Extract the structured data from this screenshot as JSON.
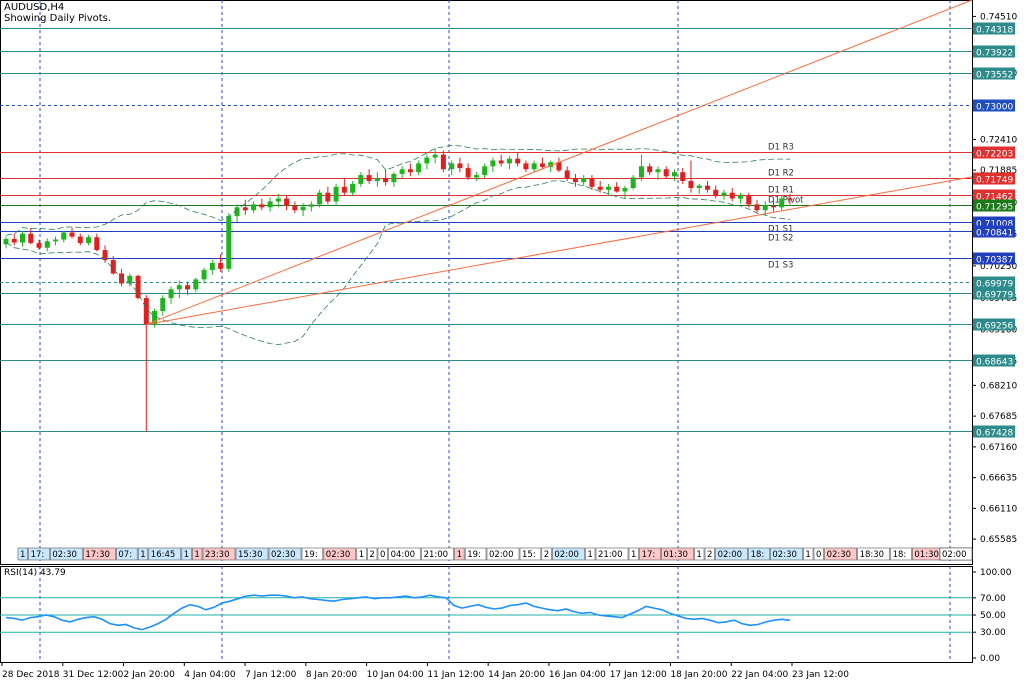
{
  "chart_data": [
    {
      "type": "candlestick",
      "symbol_title": "AUDUSD,H4",
      "subtitle": "Showing Daily Pivots.",
      "ylim": [
        0.6516,
        0.7479
      ],
      "price_ticks": [
        "0.74510",
        "0.73540",
        "0.72410",
        "0.71885",
        "0.71330",
        "0.70795",
        "0.70250",
        "0.69705",
        "0.69160",
        "0.68625",
        "0.68210",
        "0.67685",
        "0.67160",
        "0.66635",
        "0.66110",
        "0.65585"
      ],
      "horizontal_levels": [
        {
          "value": 0.74318,
          "label": "0.74318",
          "color": "#2e8b8b",
          "style": "solid"
        },
        {
          "value": 0.73922,
          "label": "0.73922",
          "color": "#2e8b8b",
          "style": "solid"
        },
        {
          "value": 0.73552,
          "label": "0.73552",
          "color": "#2e8b8b",
          "style": "solid"
        },
        {
          "value": 0.73,
          "label": "0.73000",
          "color": "#1f4fbf",
          "style": "dotted"
        },
        {
          "value": 0.72203,
          "label": "0.72203",
          "color": "#e03030",
          "style": "solid",
          "pivot": "D1 R3"
        },
        {
          "value": 0.71749,
          "label": "0.71749",
          "color": "#e03030",
          "style": "solid",
          "pivot": "D1 R2"
        },
        {
          "value": 0.71462,
          "label": "0.71462",
          "color": "#e03030",
          "style": "solid",
          "pivot": "D1 R1"
        },
        {
          "value": 0.71295,
          "label": "0.71295",
          "color": "#1a7a1a",
          "style": "solid",
          "pivot": "D1 Pivot"
        },
        {
          "value": 0.71008,
          "label": "0.71008",
          "color": "#1f3fbf",
          "style": "solid",
          "pivot": "D1 S1"
        },
        {
          "value": 0.70841,
          "label": "0.70841",
          "color": "#1f3fbf",
          "style": "solid",
          "pivot": "D1 S2"
        },
        {
          "value": 0.70387,
          "label": "0.70387",
          "color": "#1f3fbf",
          "style": "solid",
          "pivot": "D1 S3"
        },
        {
          "value": 0.69979,
          "label": "0.69979",
          "color": "#2e8b8b",
          "style": "dotted"
        },
        {
          "value": 0.69779,
          "label": "0.69779",
          "color": "#2e8b8b",
          "style": "solid"
        },
        {
          "value": 0.69256,
          "label": "0.69256",
          "color": "#2e8b8b",
          "style": "solid"
        },
        {
          "value": 0.68643,
          "label": "0.68643",
          "color": "#2e8b8b",
          "style": "solid"
        },
        {
          "value": 0.67428,
          "label": "0.67428",
          "color": "#2e8b8b",
          "style": "solid"
        }
      ],
      "x_labels": [
        "28 Dec 2018",
        "31 Dec 12:00",
        "2 Jan 20:00",
        "4 Jan 04:00",
        "7 Jan 12:00",
        "8 Jan 20:00",
        "10 Jan 04:00",
        "11 Jan 12:00",
        "14 Jan 20:00",
        "16 Jan 04:00",
        "17 Jan 12:00",
        "18 Jan 20:00",
        "22 Jan 04:00",
        "23 Jan 12:00"
      ],
      "period_separators_x": [
        40,
        222,
        449,
        678,
        950
      ],
      "session_tags": [
        {
          "t": "1",
          "c": "#c8e8ff"
        },
        {
          "t": "17:",
          "c": "#c8e8ff"
        },
        {
          "t": "02:30",
          "c": "#c8e8ff"
        },
        {
          "t": "17:30",
          "c": "#ffc8c8"
        },
        {
          "t": "07:",
          "c": "#c8e8ff"
        },
        {
          "t": "1",
          "c": "#c8e8ff"
        },
        {
          "t": "16:45",
          "c": "#c8e8ff"
        },
        {
          "t": "1",
          "c": "#c8e8ff"
        },
        {
          "t": "1",
          "c": "#ffc8c8"
        },
        {
          "t": "23:30",
          "c": "#ffc8c8"
        },
        {
          "t": "15:30",
          "c": "#c8e8ff"
        },
        {
          "t": "02:30",
          "c": "#c8e8ff"
        },
        {
          "t": "19:",
          "c": "#ffffff"
        },
        {
          "t": "02:30",
          "c": "#ffc8c8"
        },
        {
          "t": "1",
          "c": "#ffffff"
        },
        {
          "t": "2",
          "c": "#ffffff"
        },
        {
          "t": "0",
          "c": "#ffffff"
        },
        {
          "t": "04:00",
          "c": "#ffffff"
        },
        {
          "t": "21:00",
          "c": "#ffffff"
        },
        {
          "t": "1",
          "c": "#ffc8c8"
        },
        {
          "t": "19:",
          "c": "#ffffff"
        },
        {
          "t": "02:00",
          "c": "#ffffff"
        },
        {
          "t": "15:",
          "c": "#ffffff"
        },
        {
          "t": "2",
          "c": "#ffffff"
        },
        {
          "t": "02:00",
          "c": "#c8e8ff"
        },
        {
          "t": "1",
          "c": "#ffffff"
        },
        {
          "t": "21:00",
          "c": "#ffffff"
        },
        {
          "t": "1",
          "c": "#ffffff"
        },
        {
          "t": "17:",
          "c": "#ffc8c8"
        },
        {
          "t": "01:30",
          "c": "#ffc8c8"
        },
        {
          "t": "1",
          "c": "#ffffff"
        },
        {
          "t": "2",
          "c": "#ffffff"
        },
        {
          "t": "02:00",
          "c": "#c8e8ff"
        },
        {
          "t": "18:",
          "c": "#c8e8ff"
        },
        {
          "t": "02:30",
          "c": "#c8e8ff"
        },
        {
          "t": "1",
          "c": "#ffffff"
        },
        {
          "t": "0",
          "c": "#ffffff"
        },
        {
          "t": "02:30",
          "c": "#ffc8c8"
        },
        {
          "t": "18:30",
          "c": "#ffffff"
        },
        {
          "t": "18:",
          "c": "#ffffff"
        },
        {
          "t": "01:30",
          "c": "#ffc8c8"
        },
        {
          "t": "1",
          "c": "#ffffff"
        },
        {
          "t": "17:",
          "c": "#ffffff"
        },
        {
          "t": "02:00",
          "c": "#ffffff"
        },
        {
          "t": "18:30",
          "c": "#ffffff"
        },
        {
          "t": "1",
          "c": "#ffffff"
        },
        {
          "t": "2",
          "c": "#ffffff"
        },
        {
          "t": "02:00",
          "c": "#ffffff"
        }
      ],
      "ohlc": [
        [
          0.7062,
          0.7075,
          0.7055,
          0.7071
        ],
        [
          0.7071,
          0.708,
          0.706,
          0.7065
        ],
        [
          0.7065,
          0.7085,
          0.7058,
          0.708
        ],
        [
          0.708,
          0.709,
          0.7062,
          0.7064
        ],
        [
          0.7064,
          0.707,
          0.7052,
          0.7056
        ],
        [
          0.7056,
          0.7072,
          0.705,
          0.7067
        ],
        [
          0.7067,
          0.7075,
          0.706,
          0.707
        ],
        [
          0.707,
          0.7085,
          0.7065,
          0.7082
        ],
        [
          0.7082,
          0.709,
          0.7072,
          0.7075
        ],
        [
          0.7075,
          0.708,
          0.706,
          0.7064
        ],
        [
          0.7064,
          0.7078,
          0.706,
          0.7074
        ],
        [
          0.7074,
          0.708,
          0.705,
          0.7052
        ],
        [
          0.7052,
          0.706,
          0.703,
          0.7035
        ],
        [
          0.7035,
          0.7042,
          0.701,
          0.7012
        ],
        [
          0.7012,
          0.702,
          0.699,
          0.6995
        ],
        [
          0.6995,
          0.7012,
          0.699,
          0.7008
        ],
        [
          0.7008,
          0.701,
          0.6968,
          0.697
        ],
        [
          0.697,
          0.6975,
          0.6742,
          0.6925
        ],
        [
          0.6925,
          0.6952,
          0.692,
          0.6948
        ],
        [
          0.6948,
          0.6975,
          0.694,
          0.697
        ],
        [
          0.697,
          0.699,
          0.696,
          0.6985
        ],
        [
          0.6985,
          0.7,
          0.697,
          0.6992
        ],
        [
          0.6992,
          0.6998,
          0.6975,
          0.6985
        ],
        [
          0.6985,
          0.7005,
          0.698,
          0.7002
        ],
        [
          0.7002,
          0.7022,
          0.6995,
          0.7018
        ],
        [
          0.7018,
          0.7035,
          0.701,
          0.703
        ],
        [
          0.703,
          0.7045,
          0.7015,
          0.702
        ],
        [
          0.702,
          0.7115,
          0.7015,
          0.711
        ],
        [
          0.711,
          0.713,
          0.71,
          0.7125
        ],
        [
          0.7125,
          0.7138,
          0.7112,
          0.712
        ],
        [
          0.712,
          0.7135,
          0.7115,
          0.713
        ],
        [
          0.713,
          0.714,
          0.712,
          0.7125
        ],
        [
          0.7125,
          0.7142,
          0.7118,
          0.7135
        ],
        [
          0.7135,
          0.7148,
          0.7125,
          0.714
        ],
        [
          0.714,
          0.7145,
          0.712,
          0.7128
        ],
        [
          0.7128,
          0.7135,
          0.7115,
          0.712
        ],
        [
          0.712,
          0.7132,
          0.711,
          0.7126
        ],
        [
          0.7126,
          0.7135,
          0.7118,
          0.713
        ],
        [
          0.713,
          0.7155,
          0.7125,
          0.715
        ],
        [
          0.715,
          0.716,
          0.713,
          0.7135
        ],
        [
          0.7135,
          0.7165,
          0.713,
          0.716
        ],
        [
          0.716,
          0.7175,
          0.7145,
          0.715
        ],
        [
          0.715,
          0.717,
          0.7145,
          0.7165
        ],
        [
          0.7165,
          0.7185,
          0.716,
          0.718
        ],
        [
          0.718,
          0.719,
          0.7165,
          0.717
        ],
        [
          0.717,
          0.7185,
          0.716,
          0.7175
        ],
        [
          0.7175,
          0.719,
          0.7162,
          0.7168
        ],
        [
          0.7168,
          0.7185,
          0.716,
          0.7182
        ],
        [
          0.7182,
          0.7195,
          0.7175,
          0.719
        ],
        [
          0.719,
          0.72,
          0.7178,
          0.7185
        ],
        [
          0.7185,
          0.7205,
          0.718,
          0.72
        ],
        [
          0.72,
          0.7215,
          0.719,
          0.721
        ],
        [
          0.721,
          0.7225,
          0.72,
          0.7215
        ],
        [
          0.7215,
          0.7222,
          0.7185,
          0.719
        ],
        [
          0.719,
          0.7205,
          0.718,
          0.72
        ],
        [
          0.72,
          0.721,
          0.7185,
          0.7192
        ],
        [
          0.7192,
          0.72,
          0.7172,
          0.7176
        ],
        [
          0.7176,
          0.7185,
          0.717,
          0.718
        ],
        [
          0.718,
          0.72,
          0.7175,
          0.7195
        ],
        [
          0.7195,
          0.721,
          0.7185,
          0.7205
        ],
        [
          0.7205,
          0.7215,
          0.7195,
          0.72
        ],
        [
          0.72,
          0.7212,
          0.719,
          0.7208
        ],
        [
          0.7208,
          0.7218,
          0.7195,
          0.72
        ],
        [
          0.72,
          0.7205,
          0.7185,
          0.719
        ],
        [
          0.719,
          0.7205,
          0.7185,
          0.72
        ],
        [
          0.72,
          0.721,
          0.719,
          0.7194
        ],
        [
          0.7194,
          0.7205,
          0.7185,
          0.7202
        ],
        [
          0.7202,
          0.721,
          0.7185,
          0.7188
        ],
        [
          0.7188,
          0.7195,
          0.717,
          0.7175
        ],
        [
          0.7175,
          0.7182,
          0.716,
          0.7168
        ],
        [
          0.7168,
          0.718,
          0.7162,
          0.7175
        ],
        [
          0.7175,
          0.718,
          0.7155,
          0.716
        ],
        [
          0.716,
          0.717,
          0.715,
          0.7155
        ],
        [
          0.7155,
          0.7165,
          0.7145,
          0.716
        ],
        [
          0.716,
          0.7168,
          0.715,
          0.7152
        ],
        [
          0.7152,
          0.7162,
          0.714,
          0.7158
        ],
        [
          0.7158,
          0.718,
          0.7155,
          0.7176
        ],
        [
          0.7176,
          0.7215,
          0.717,
          0.7195
        ],
        [
          0.7195,
          0.72,
          0.718,
          0.7185
        ],
        [
          0.7185,
          0.7195,
          0.7172,
          0.719
        ],
        [
          0.719,
          0.7195,
          0.7175,
          0.7178
        ],
        [
          0.7178,
          0.719,
          0.717,
          0.7185
        ],
        [
          0.7185,
          0.7192,
          0.7165,
          0.717
        ],
        [
          0.717,
          0.7205,
          0.715,
          0.7158
        ],
        [
          0.7158,
          0.7165,
          0.7148,
          0.7162
        ],
        [
          0.7162,
          0.717,
          0.715,
          0.7155
        ],
        [
          0.7155,
          0.7162,
          0.714,
          0.7145
        ],
        [
          0.7145,
          0.7155,
          0.7138,
          0.715
        ],
        [
          0.715,
          0.7158,
          0.7135,
          0.714
        ],
        [
          0.714,
          0.715,
          0.7132,
          0.7145
        ],
        [
          0.7145,
          0.715,
          0.7125,
          0.713
        ],
        [
          0.713,
          0.7138,
          0.7115,
          0.712
        ],
        [
          0.712,
          0.7135,
          0.7112,
          0.7128
        ],
        [
          0.7128,
          0.714,
          0.7118,
          0.7125
        ],
        [
          0.7125,
          0.7145,
          0.712,
          0.714
        ],
        [
          0.714,
          0.7148,
          0.713,
          0.7138
        ]
      ],
      "trendlines": [
        {
          "name": "upper",
          "color": "#ff6a3c"
        },
        {
          "name": "lower",
          "color": "#ff6a3c"
        }
      ],
      "bollinger_color": "#2e7d5b",
      "colors": {
        "up": "#1db41d",
        "down": "#e02020",
        "grid": "#2a48c8"
      }
    },
    {
      "type": "line",
      "title": "RSI(14) 43.79",
      "ylim": [
        0,
        100
      ],
      "y_ticks": [
        "100.00",
        "70.00",
        "50.00",
        "30.00",
        "0.00"
      ],
      "levels": [
        70,
        50,
        30
      ],
      "line_color": "#1e90ff",
      "level_color": "#20b2aa",
      "values": [
        47,
        46,
        44,
        47,
        48,
        50,
        48,
        44,
        42,
        45,
        47,
        48,
        45,
        40,
        38,
        39,
        35,
        33,
        36,
        40,
        45,
        52,
        58,
        62,
        60,
        56,
        59,
        64,
        66,
        69,
        72,
        73,
        72,
        73,
        73,
        72,
        70,
        71,
        69,
        68,
        67,
        66,
        68,
        69,
        70,
        71,
        69,
        70,
        70,
        71,
        72,
        70,
        71,
        73,
        71,
        70,
        61,
        58,
        60,
        62,
        59,
        57,
        58,
        61,
        62,
        64,
        60,
        58,
        56,
        55,
        57,
        54,
        52,
        53,
        50,
        49,
        48,
        47,
        51,
        55,
        60,
        58,
        56,
        52,
        49,
        46,
        45,
        46,
        44,
        41,
        42,
        44,
        40,
        38,
        39,
        42,
        44,
        45,
        43.79
      ]
    }
  ]
}
